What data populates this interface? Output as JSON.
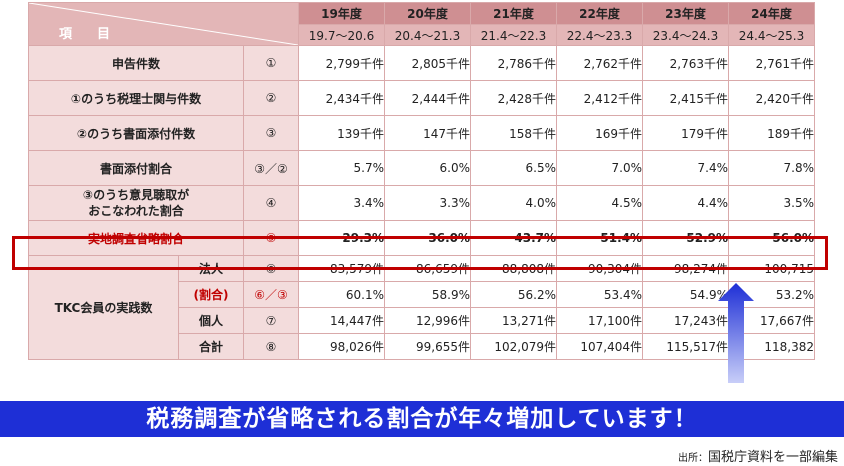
{
  "header": {
    "item_label": "項　目",
    "years": [
      "19年度",
      "20年度",
      "21年度",
      "22年度",
      "23年度",
      "24年度"
    ],
    "periods": [
      "19.7～20.6",
      "20.4～21.3",
      "21.4～22.3",
      "22.4～23.3",
      "23.4～24.3",
      "24.4～25.3"
    ]
  },
  "rows": [
    {
      "label": "申告件数",
      "no": "①",
      "values": [
        "2,799千件",
        "2,805千件",
        "2,786千件",
        "2,762千件",
        "2,763千件",
        "2,761千件"
      ]
    },
    {
      "label": "①のうち税理士関与件数",
      "no": "②",
      "values": [
        "2,434千件",
        "2,444千件",
        "2,428千件",
        "2,412千件",
        "2,415千件",
        "2,420千件"
      ]
    },
    {
      "label": "②のうち書面添付件数",
      "no": "③",
      "values": [
        "139千件",
        "147千件",
        "158千件",
        "169千件",
        "179千件",
        "189千件"
      ]
    },
    {
      "label": "書面添付割合",
      "no": "③／②",
      "values": [
        "5.7%",
        "6.0%",
        "6.5%",
        "7.0%",
        "7.4%",
        "7.8%"
      ]
    },
    {
      "label": "③のうち意見聴取が\nおこなわれた割合",
      "no": "④",
      "values": [
        "3.4%",
        "3.3%",
        "4.0%",
        "4.5%",
        "4.4%",
        "3.5%"
      ]
    },
    {
      "label": "実地調査省略割合",
      "no": "⑤",
      "values": [
        "29.3%",
        "36.0%",
        "43.7%",
        "51.4%",
        "52.9%",
        "56.0%"
      ]
    }
  ],
  "tkc": {
    "label": "TKC会員の実践数",
    "rows": [
      {
        "sub": "法人",
        "no": "⑥",
        "values": [
          "83,579件",
          "86,659件",
          "88,808件",
          "90,304件",
          "98,274件",
          "100,715"
        ]
      },
      {
        "sub": "(割合)",
        "no": "⑥／③",
        "values": [
          "60.1%",
          "58.9%",
          "56.2%",
          "53.4%",
          "54.9%",
          "53.2%"
        ]
      },
      {
        "sub": "個人",
        "no": "⑦",
        "values": [
          "14,447件",
          "12,996件",
          "13,271件",
          "17,100件",
          "17,243件",
          "17,667件"
        ]
      },
      {
        "sub": "合計",
        "no": "⑧",
        "values": [
          "98,026件",
          "99,655件",
          "102,079件",
          "107,404件",
          "115,517件",
          "118,382"
        ]
      }
    ]
  },
  "banner": "税務調査が省略される割合が年々増加しています！",
  "source": {
    "prefix": "出所：",
    "text": "国税庁資料を一部編集"
  },
  "colors": {
    "accent_red": "#c00000",
    "banner_blue": "#1e2fd6",
    "header_pink": "#cf8f92",
    "label_pink": "#f3dcdc"
  }
}
